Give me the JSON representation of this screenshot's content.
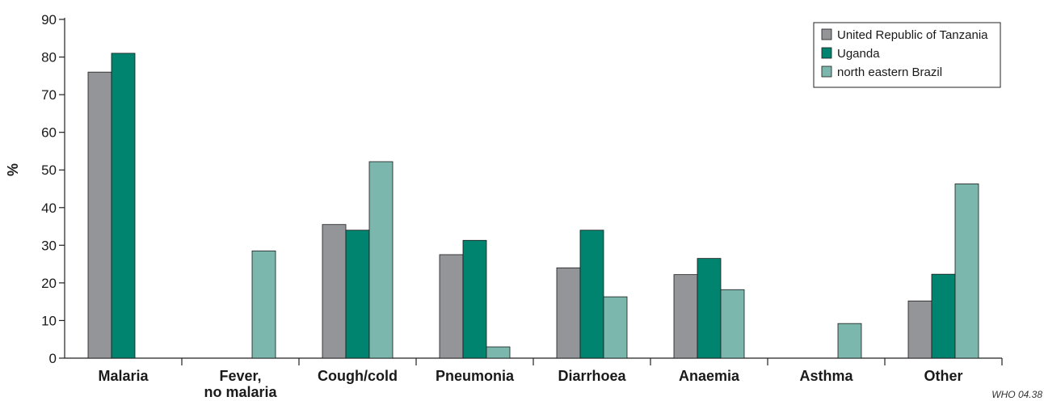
{
  "chart_data": {
    "type": "bar",
    "ylabel": "%",
    "ylim": [
      0,
      90
    ],
    "yticks": [
      0,
      10,
      20,
      30,
      40,
      50,
      60,
      70,
      80,
      90
    ],
    "categories": [
      "Malaria",
      "Fever, no malaria",
      "Cough/cold",
      "Pneumonia",
      "Diarrhoea",
      "Anaemia",
      "Asthma",
      "Other"
    ],
    "category_lines": [
      [
        "Malaria"
      ],
      [
        "Fever,",
        "no malaria"
      ],
      [
        "Cough/cold"
      ],
      [
        "Pneumonia"
      ],
      [
        "Diarrhoea"
      ],
      [
        "Anaemia"
      ],
      [
        "Asthma"
      ],
      [
        "Other"
      ]
    ],
    "series": [
      {
        "name": "United Republic of Tanzania",
        "color": "#939598",
        "values": [
          76,
          null,
          35.5,
          27.5,
          24,
          22.2,
          null,
          15.2
        ]
      },
      {
        "name": "Uganda",
        "color": "#008470",
        "values": [
          81,
          null,
          34,
          31.3,
          34,
          26.5,
          null,
          22.3
        ]
      },
      {
        "name": "north eastern Brazil",
        "color": "#7bb7ac",
        "values": [
          null,
          28.5,
          52.2,
          3,
          16.3,
          18.2,
          9.2,
          46.3
        ]
      }
    ],
    "legend_position": "top-right",
    "grid": false,
    "credit": "WHO 04.38"
  }
}
